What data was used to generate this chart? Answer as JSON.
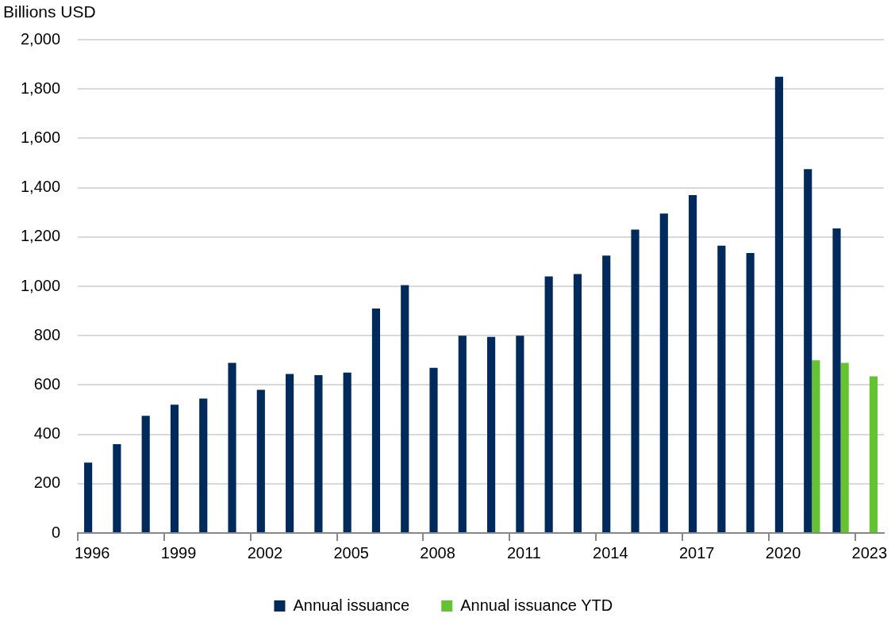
{
  "chart_data": {
    "type": "bar",
    "ylabel": "Billions USD",
    "categories": [
      "1996",
      null,
      null,
      "1999",
      null,
      null,
      "2002",
      null,
      null,
      "2005",
      null,
      null,
      "2008",
      null,
      null,
      "2011",
      null,
      null,
      "2014",
      null,
      null,
      "2017",
      null,
      null,
      "2020",
      null,
      null,
      "2023"
    ],
    "series": [
      {
        "name": "Annual issuance",
        "color": "#002a5c",
        "values": [
          285,
          360,
          475,
          520,
          545,
          690,
          580,
          645,
          640,
          650,
          910,
          1005,
          670,
          800,
          795,
          800,
          1040,
          1050,
          1125,
          1230,
          1295,
          1370,
          1165,
          1135,
          1850,
          1475,
          1235,
          null
        ]
      },
      {
        "name": "Annual issuance YTD",
        "color": "#65c332",
        "values": [
          null,
          null,
          null,
          null,
          null,
          null,
          null,
          null,
          null,
          null,
          null,
          null,
          null,
          null,
          null,
          null,
          null,
          null,
          null,
          null,
          null,
          null,
          null,
          null,
          null,
          700,
          690,
          635
        ]
      }
    ],
    "ylim": [
      0,
      2000
    ],
    "yticks": [
      0,
      200,
      400,
      600,
      800,
      {
        "value": 1000,
        "label": "1,000"
      },
      {
        "value": 1200,
        "label": "1,200"
      },
      {
        "value": 1400,
        "label": "1,400"
      },
      {
        "value": 1600,
        "label": "1,600"
      },
      {
        "value": 1800,
        "label": "1,800"
      },
      {
        "value": 2000,
        "label": "2,000"
      }
    ],
    "grid": "y",
    "legend": "bottom"
  }
}
